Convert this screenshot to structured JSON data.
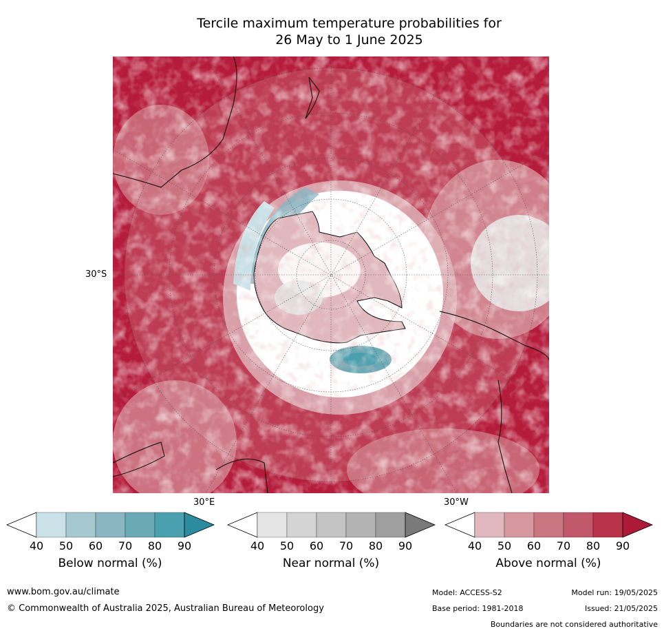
{
  "title": {
    "line1": "Tercile maximum temperature probabilities for",
    "line2": "26 May to 1 June 2025"
  },
  "map": {
    "lat_label": "30°S",
    "lon_labels": {
      "east": "30°E",
      "west": "30°W"
    },
    "colors": {
      "ocean_above": "#b51c3b",
      "land_outline": "#000000"
    }
  },
  "colorbars": [
    {
      "label": "Below normal (%)",
      "ticks": [
        "40",
        "50",
        "60",
        "70",
        "80",
        "90"
      ],
      "colors": [
        "#ffffff",
        "#c9e1e7",
        "#a6c8d0",
        "#8bb5c1",
        "#6aaab6",
        "#4aa0ae",
        "#2b8c9f"
      ]
    },
    {
      "label": "Near normal (%)",
      "ticks": [
        "40",
        "50",
        "60",
        "70",
        "80",
        "90"
      ],
      "colors": [
        "#ffffff",
        "#e5e5e5",
        "#d4d4d4",
        "#c4c4c4",
        "#b3b3b3",
        "#9f9f9f",
        "#7a7a7a"
      ]
    },
    {
      "label": "Above normal (%)",
      "ticks": [
        "40",
        "50",
        "60",
        "70",
        "80",
        "90"
      ],
      "colors": [
        "#ffffff",
        "#e0b8bd",
        "#d6979f",
        "#c97680",
        "#c2596a",
        "#b9344b",
        "#ac1a38"
      ]
    }
  ],
  "footer": {
    "url": "www.bom.gov.au/climate",
    "copyright": "© Commonwealth of Australia 2025, Australian Bureau of Meteorology",
    "model": "Model: ACCESS-S2",
    "base_period": "Base period: 1981-2018",
    "model_run": "Model run: 19/05/2025",
    "issued": "Issued: 21/05/2025",
    "disclaimer": "Boundaries are not considered authoritative"
  }
}
